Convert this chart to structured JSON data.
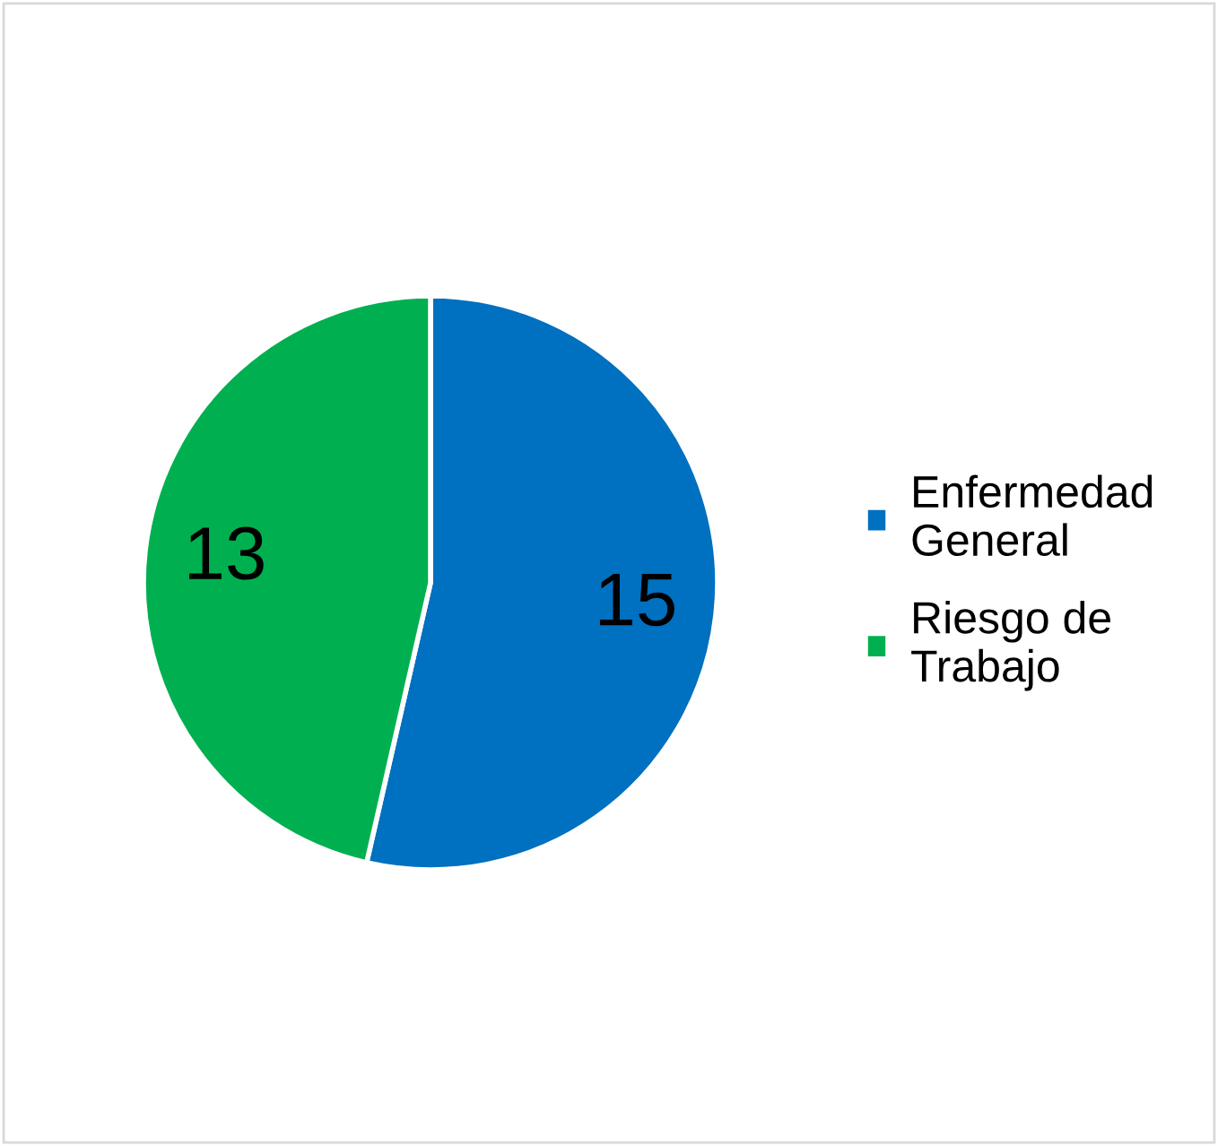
{
  "chart_data": {
    "type": "pie",
    "categories": [
      "Enfermedad\nGeneral",
      "Riesgo de\nTrabajo"
    ],
    "values": [
      15,
      13
    ],
    "colors": [
      "#0070c0",
      "#00b050"
    ],
    "data_labels": true,
    "legend": "right"
  }
}
